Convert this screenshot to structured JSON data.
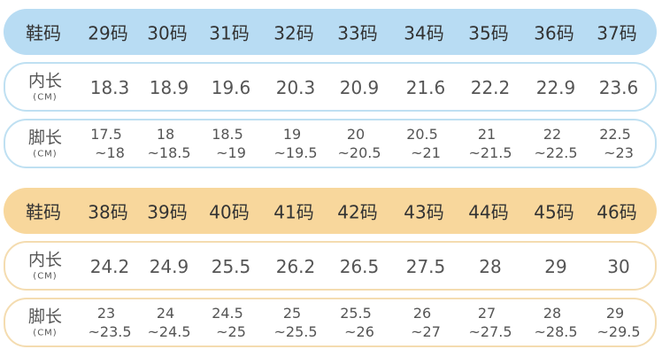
{
  "tables": [
    {
      "header": [
        "鞋码",
        "29码",
        "30码",
        "31码",
        "32码",
        "33码",
        "34码",
        "35码",
        "36码",
        "37码"
      ],
      "inner": {
        "label": "内长",
        "unit": "(CM)",
        "values": [
          "18.3",
          "18.9",
          "19.6",
          "20.3",
          "20.9",
          "21.6",
          "22.2",
          "22.9",
          "23.6"
        ]
      },
      "foot": {
        "label": "脚长",
        "unit": "(CM)",
        "values": [
          [
            "17.5",
            "~18"
          ],
          [
            "18",
            "~18.5"
          ],
          [
            "18.5",
            "~19"
          ],
          [
            "19",
            "~19.5"
          ],
          [
            "20",
            "~20.5"
          ],
          [
            "20.5",
            "~21"
          ],
          [
            "21",
            "~21.5"
          ],
          [
            "22",
            "~22.5"
          ],
          [
            "22.5",
            "~23"
          ]
        ]
      }
    },
    {
      "header": [
        "鞋码",
        "38码",
        "39码",
        "40码",
        "41码",
        "42码",
        "43码",
        "44码",
        "45码",
        "46码"
      ],
      "inner": {
        "label": "内长",
        "unit": "(CM)",
        "values": [
          "24.2",
          "24.9",
          "25.5",
          "26.2",
          "26.5",
          "27.5",
          "28",
          "29",
          "30"
        ]
      },
      "foot": {
        "label": "脚长",
        "unit": "(CM)",
        "values": [
          [
            "23",
            "~23.5"
          ],
          [
            "24",
            "~24.5"
          ],
          [
            "24.5",
            "~25"
          ],
          [
            "25",
            "~25.5"
          ],
          [
            "25.5",
            "~26"
          ],
          [
            "26",
            "~27"
          ],
          [
            "27",
            "~27.5"
          ],
          [
            "28",
            "~28.5"
          ],
          [
            "29",
            "~29.5"
          ]
        ]
      }
    }
  ]
}
